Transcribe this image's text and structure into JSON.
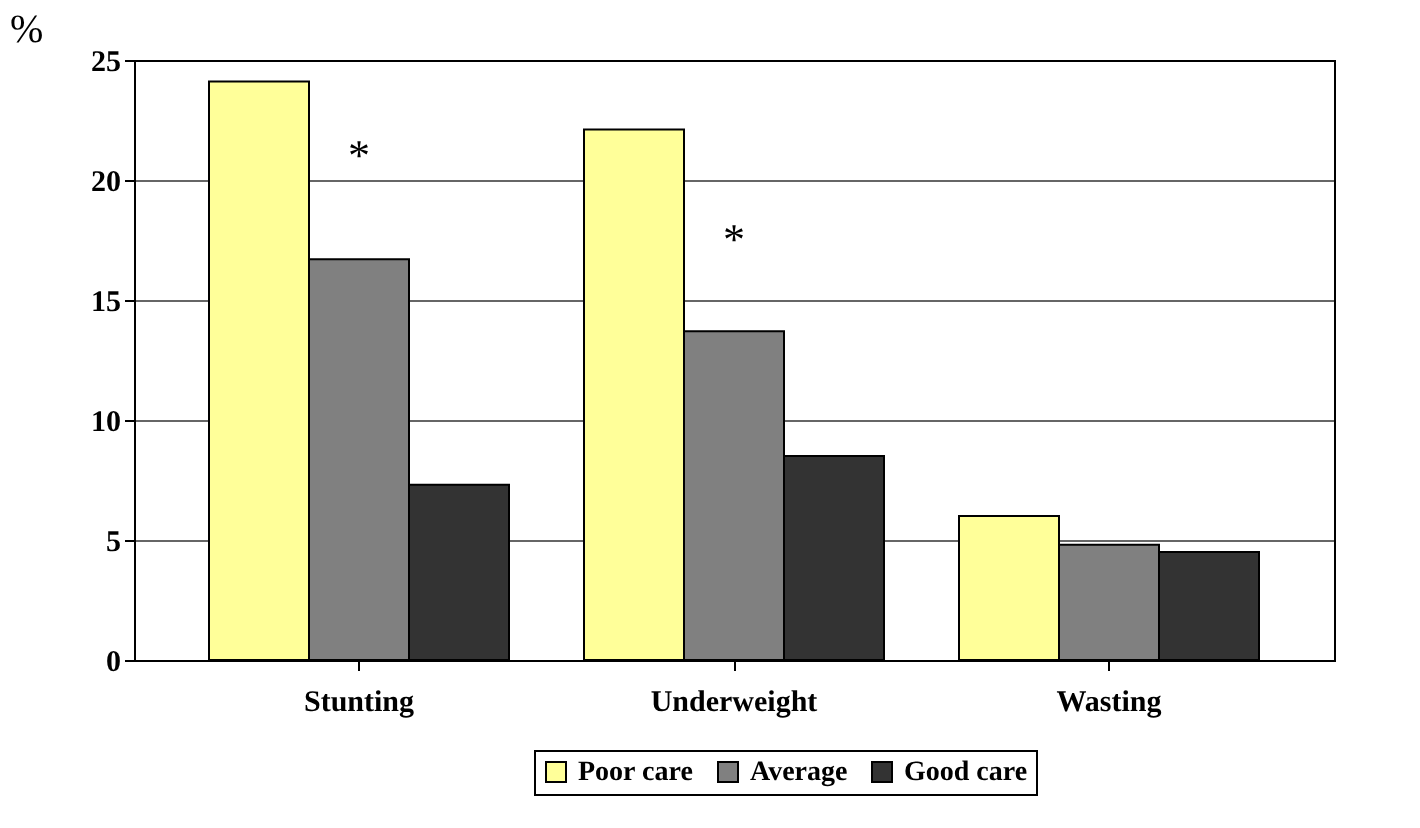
{
  "chart_data": {
    "type": "bar",
    "ylabel": "%",
    "categories": [
      "Stunting",
      "Underweight",
      "Wasting"
    ],
    "series": [
      {
        "name": "Poor care",
        "color": "#ffff99",
        "values": [
          24.1,
          22.1,
          6.0
        ]
      },
      {
        "name": "Average",
        "color": "#808080",
        "values": [
          16.7,
          13.7,
          4.8
        ]
      },
      {
        "name": "Good care",
        "color": "#333333",
        "values": [
          7.3,
          8.5,
          4.5
        ]
      }
    ],
    "annotations": [
      "*",
      "*"
    ],
    "ylim": [
      0,
      25
    ],
    "yticks": [
      0,
      5,
      10,
      15,
      20,
      25
    ],
    "grid": "y",
    "legend": "bottom"
  }
}
